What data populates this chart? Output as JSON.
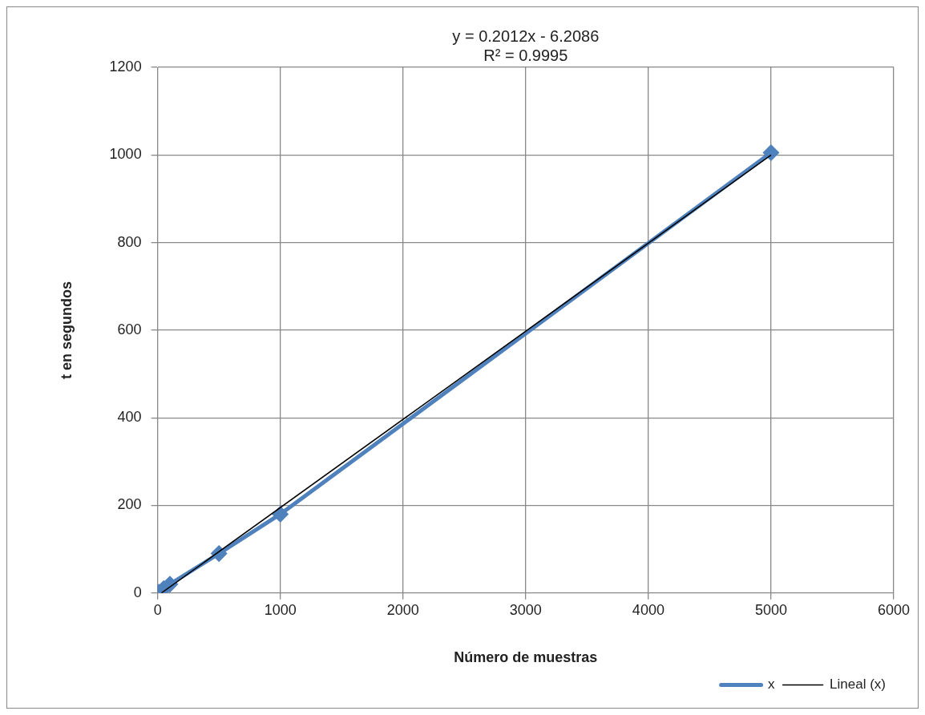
{
  "chart_data": {
    "type": "line",
    "xlabel": "Número de muestras",
    "ylabel": "t en segundos",
    "annotations": [
      "y = 0.2012x - 6.2086",
      "R² = 0.9995"
    ],
    "series": [
      {
        "name": "x",
        "color": "#4f81bd",
        "x": [
          10,
          50,
          100,
          500,
          1000,
          5000
        ],
        "values": [
          2,
          10,
          20,
          90,
          180,
          1005
        ],
        "marker": "diamond"
      },
      {
        "name": "Lineal (x)",
        "color": "#000000",
        "x": [
          31,
          5000
        ],
        "values": [
          0,
          1000
        ],
        "marker": "none"
      }
    ],
    "xlim": [
      0,
      6000
    ],
    "xticks": [
      0,
      1000,
      2000,
      3000,
      4000,
      5000,
      6000
    ],
    "ylim": [
      0,
      1200
    ],
    "yticks": [
      0,
      200,
      400,
      600,
      800,
      1000,
      1200
    ],
    "grid": true,
    "legend": "bottom right"
  }
}
